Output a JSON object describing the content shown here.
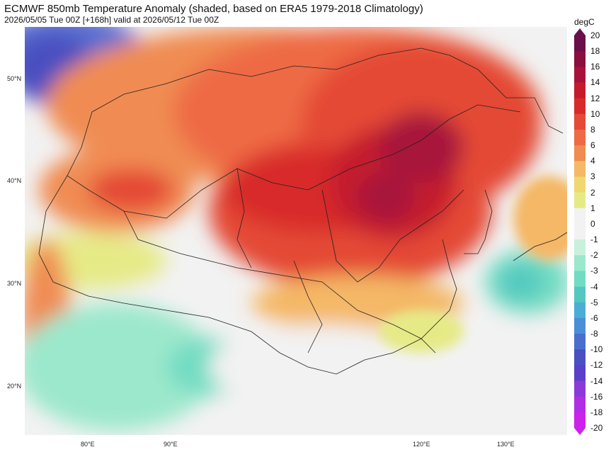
{
  "header": {
    "title": "ECMWF 850mb Temperature Anomaly (shaded, based on ERA5 1979-2018 Climatology)",
    "subtitle": "2026/05/05 Tue 00Z [+168h] valid at 2026/05/12 Tue 00Z"
  },
  "map": {
    "lat_labels": [
      "50°N",
      "40°N",
      "30°N",
      "20°N"
    ],
    "lon_labels": [
      "80°E",
      "90°E",
      "120°E",
      "130°E"
    ]
  },
  "colorbar": {
    "unit": "degC",
    "levels": [
      "20",
      "18",
      "16",
      "14",
      "12",
      "10",
      "8",
      "6",
      "4",
      "3",
      "2",
      "1",
      "0",
      "-1",
      "-2",
      "-3",
      "-4",
      "-5",
      "-6",
      "-8",
      "-10",
      "-12",
      "-14",
      "-16",
      "-18",
      "-20"
    ],
    "colors": [
      "#6b0f4a",
      "#8a0f3e",
      "#a8123a",
      "#c41a2e",
      "#d82a2a",
      "#e44a36",
      "#ee6a44",
      "#f08c52",
      "#f4b866",
      "#f0d870",
      "#e6ea86",
      "#f2f2f2",
      "#f2f2f2",
      "#c8f0dc",
      "#9ce8cc",
      "#72dcc2",
      "#52c8c0",
      "#4aaed4",
      "#4a8ed8",
      "#4a6ecc",
      "#4a50c0",
      "#5a40c8",
      "#8a3ad8",
      "#b02ee4",
      "#cc22ec"
    ]
  }
}
